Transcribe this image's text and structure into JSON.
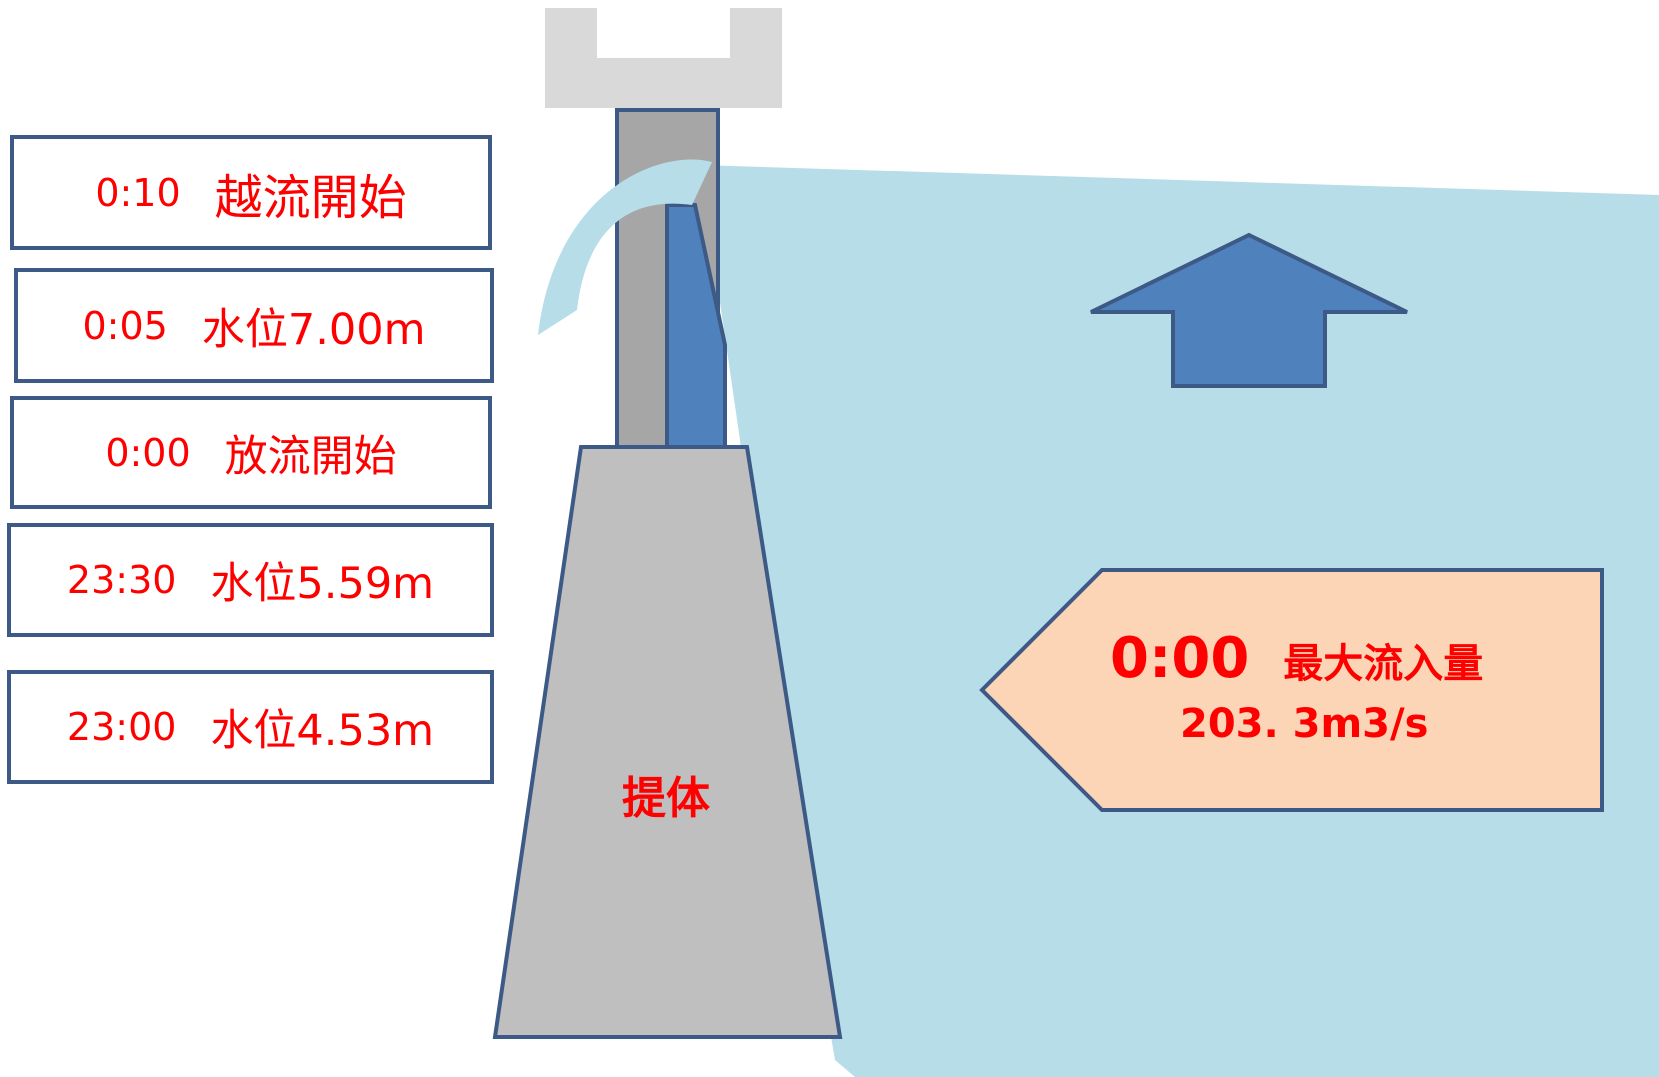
{
  "events": [
    {
      "time": "0:10",
      "label": "越流開始"
    },
    {
      "time": "0:05",
      "label": "水位7.00m"
    },
    {
      "time": "0:00",
      "label": "放流開始"
    },
    {
      "time": "23:30",
      "label": "水位5.59m"
    },
    {
      "time": "23:00",
      "label": "水位4.53m"
    }
  ],
  "dam": {
    "label": "提体"
  },
  "inflow": {
    "time": "0:00",
    "label": "最大流入量",
    "value": "203. 3m3/s"
  },
  "colors": {
    "water": "#b7dde8",
    "dam_body": "#bfbfbf",
    "dam_column": "#a6a6a6",
    "gate": "#4f81bd",
    "outline": "#3d5a86",
    "bridge": "#d9d9d9",
    "callout_fill": "#fbd5b5",
    "text_red": "#ff0000"
  }
}
